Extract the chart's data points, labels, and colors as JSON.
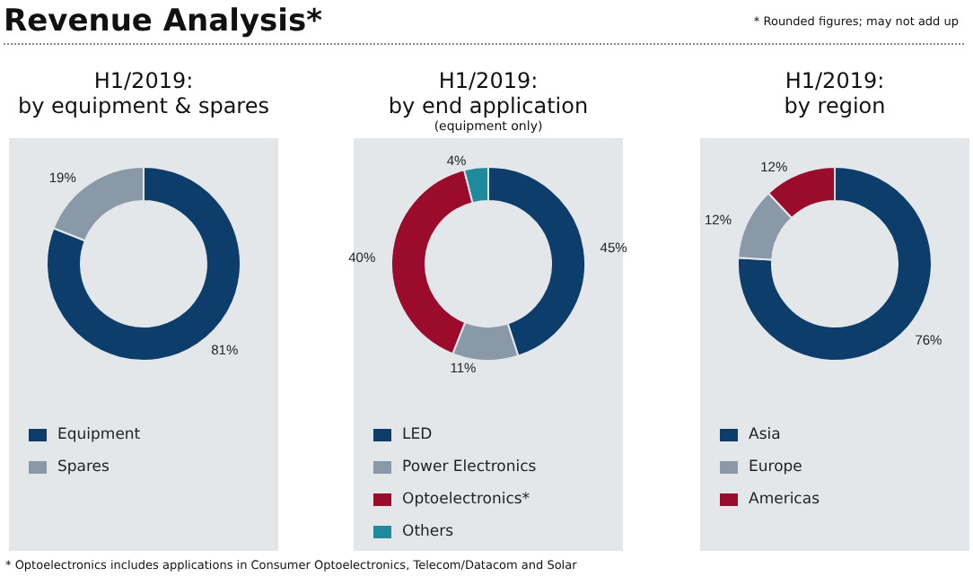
{
  "chart_data": [
    {
      "type": "other",
      "title": "Revenue Analysis*",
      "annotations": [
        "* Rounded figures; may not add up",
        "* Optoelectronics includes applications in Consumer Optoelectronics, Telecom/Datacom and Solar"
      ]
    },
    {
      "type": "donut",
      "title": "H1/2019:\nby equipment & spares",
      "categories": [
        "Equipment",
        "Spares"
      ],
      "values": [
        81,
        19
      ],
      "colors": [
        "#0c3d6b",
        "#8a99a7"
      ],
      "value_labels": [
        "81%",
        "19%"
      ],
      "legend": "bottom left"
    },
    {
      "type": "donut",
      "title": "H1/2019:\nby end application",
      "subtitle": "(equipment only)",
      "categories": [
        "LED",
        "Power Electronics",
        "Optoelectronics*",
        "Others"
      ],
      "values": [
        45,
        11,
        40,
        4
      ],
      "colors": [
        "#0c3d6b",
        "#8a99a7",
        "#9a0b2c",
        "#1f8a9c"
      ],
      "value_labels": [
        "45%",
        "11%",
        "40%",
        "4%"
      ],
      "legend": "bottom left"
    },
    {
      "type": "donut",
      "title": "H1/2019:\nby region",
      "categories": [
        "Asia",
        "Europe",
        "Americas"
      ],
      "values": [
        76,
        12,
        12
      ],
      "colors": [
        "#0c3d6b",
        "#8a99a7",
        "#9a0b2c"
      ],
      "value_labels": [
        "76%",
        "12%",
        "12%"
      ],
      "legend": "bottom left"
    }
  ]
}
